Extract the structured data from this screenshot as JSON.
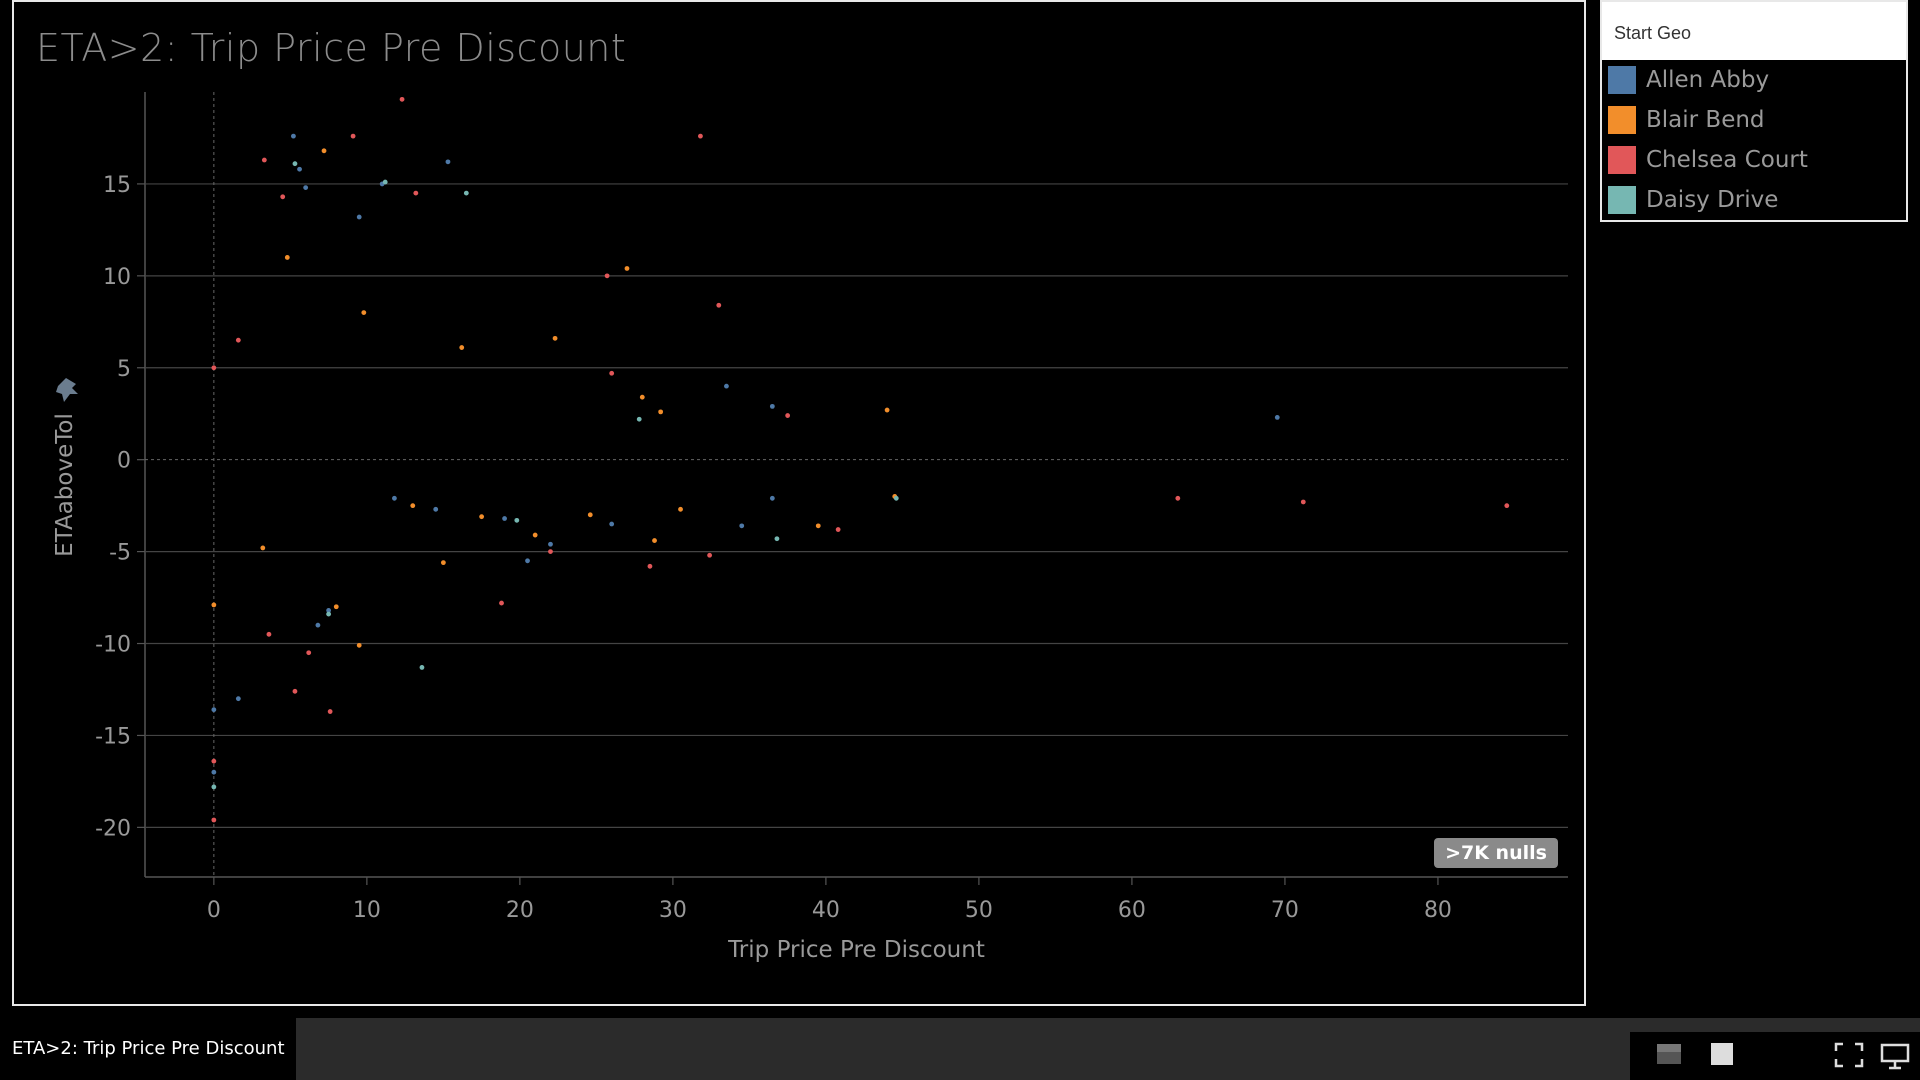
{
  "sheet_tab": {
    "label": "ETA>2: Trip Price Pre Discount"
  },
  "legend": {
    "title": "Start Geo",
    "items": [
      {
        "label": "Allen Abby",
        "color": "#4e79a7"
      },
      {
        "label": "Blair Bend",
        "color": "#f28e2b"
      },
      {
        "label": "Chelsea Court",
        "color": "#e15759"
      },
      {
        "label": "Daisy Drive",
        "color": "#76b7b2"
      }
    ]
  },
  "nulls_badge": ">7K nulls",
  "toolbar": {
    "icons": [
      "layout-icon",
      "square-icon",
      "fullscreen-icon",
      "present-icon"
    ]
  },
  "chart_data": {
    "type": "scatter",
    "title": "ETA>2: Trip Price Pre Discount",
    "xlabel": "Trip Price Pre Discount",
    "ylabel": "ETAaboveTol",
    "xlim": [
      -4.5,
      88.5
    ],
    "ylim": [
      -22.7,
      20.0
    ],
    "xticks": [
      0,
      10,
      20,
      30,
      40,
      50,
      60,
      70,
      80
    ],
    "yticks": [
      15,
      10,
      5,
      0,
      -5,
      -10,
      -15,
      -20
    ],
    "grid": "horizontal",
    "legend_position": "right",
    "series": [
      {
        "name": "Allen Abby",
        "color": "#4e79a7",
        "points": [
          [
            5.2,
            17.6
          ],
          [
            5.6,
            15.8
          ],
          [
            6.0,
            14.8
          ],
          [
            9.5,
            13.2
          ],
          [
            11.0,
            15.0
          ],
          [
            15.3,
            16.2
          ],
          [
            33.5,
            4.0
          ],
          [
            36.5,
            2.9
          ],
          [
            69.5,
            2.3
          ],
          [
            1.6,
            -13.0
          ],
          [
            0.0,
            -13.6
          ],
          [
            0.0,
            -17.0
          ],
          [
            6.8,
            -9.0
          ],
          [
            7.5,
            -8.2
          ],
          [
            20.5,
            -5.5
          ],
          [
            26.0,
            -3.5
          ],
          [
            34.5,
            -3.6
          ],
          [
            36.5,
            -2.1
          ],
          [
            22.0,
            -4.6
          ],
          [
            11.8,
            -2.1
          ],
          [
            14.5,
            -2.7
          ],
          [
            19.0,
            -3.2
          ]
        ]
      },
      {
        "name": "Blair Bend",
        "color": "#f28e2b",
        "points": [
          [
            4.8,
            11.0
          ],
          [
            7.2,
            16.8
          ],
          [
            9.8,
            8.0
          ],
          [
            16.2,
            6.1
          ],
          [
            22.3,
            6.6
          ],
          [
            27.0,
            10.4
          ],
          [
            28.0,
            3.4
          ],
          [
            44.0,
            2.7
          ],
          [
            29.2,
            2.6
          ],
          [
            44.5,
            -2.0
          ],
          [
            39.5,
            -3.6
          ],
          [
            9.5,
            -10.1
          ],
          [
            8.0,
            -8.0
          ],
          [
            15.0,
            -5.6
          ],
          [
            17.5,
            -3.1
          ],
          [
            21.0,
            -4.1
          ],
          [
            24.6,
            -3.0
          ],
          [
            30.5,
            -2.7
          ],
          [
            28.8,
            -4.4
          ],
          [
            3.2,
            -4.8
          ],
          [
            0.0,
            -7.9
          ],
          [
            13.0,
            -2.5
          ]
        ]
      },
      {
        "name": "Chelsea Court",
        "color": "#e15759",
        "points": [
          [
            12.3,
            19.6
          ],
          [
            31.8,
            17.6
          ],
          [
            9.1,
            17.6
          ],
          [
            3.3,
            16.3
          ],
          [
            4.5,
            14.3
          ],
          [
            13.2,
            14.5
          ],
          [
            25.7,
            10.0
          ],
          [
            33.0,
            8.4
          ],
          [
            26.0,
            4.7
          ],
          [
            37.5,
            2.4
          ],
          [
            40.8,
            -3.8
          ],
          [
            63.0,
            -2.1
          ],
          [
            71.2,
            -2.3
          ],
          [
            84.5,
            -2.5
          ],
          [
            32.4,
            -5.2
          ],
          [
            28.5,
            -5.8
          ],
          [
            7.6,
            -13.7
          ],
          [
            5.3,
            -12.6
          ],
          [
            6.2,
            -10.5
          ],
          [
            0.0,
            -16.4
          ],
          [
            0.0,
            -19.6
          ],
          [
            0.0,
            5.0
          ],
          [
            1.6,
            6.5
          ],
          [
            3.6,
            -9.5
          ],
          [
            18.8,
            -7.8
          ],
          [
            22.0,
            -5.0
          ]
        ]
      },
      {
        "name": "Daisy Drive",
        "color": "#76b7b2",
        "points": [
          [
            5.3,
            16.1
          ],
          [
            16.5,
            14.5
          ],
          [
            11.2,
            15.1
          ],
          [
            27.8,
            2.2
          ],
          [
            36.8,
            -4.3
          ],
          [
            44.6,
            -2.1
          ],
          [
            13.6,
            -11.3
          ],
          [
            0.0,
            -17.8
          ],
          [
            7.5,
            -8.4
          ],
          [
            19.8,
            -3.3
          ]
        ]
      }
    ]
  }
}
